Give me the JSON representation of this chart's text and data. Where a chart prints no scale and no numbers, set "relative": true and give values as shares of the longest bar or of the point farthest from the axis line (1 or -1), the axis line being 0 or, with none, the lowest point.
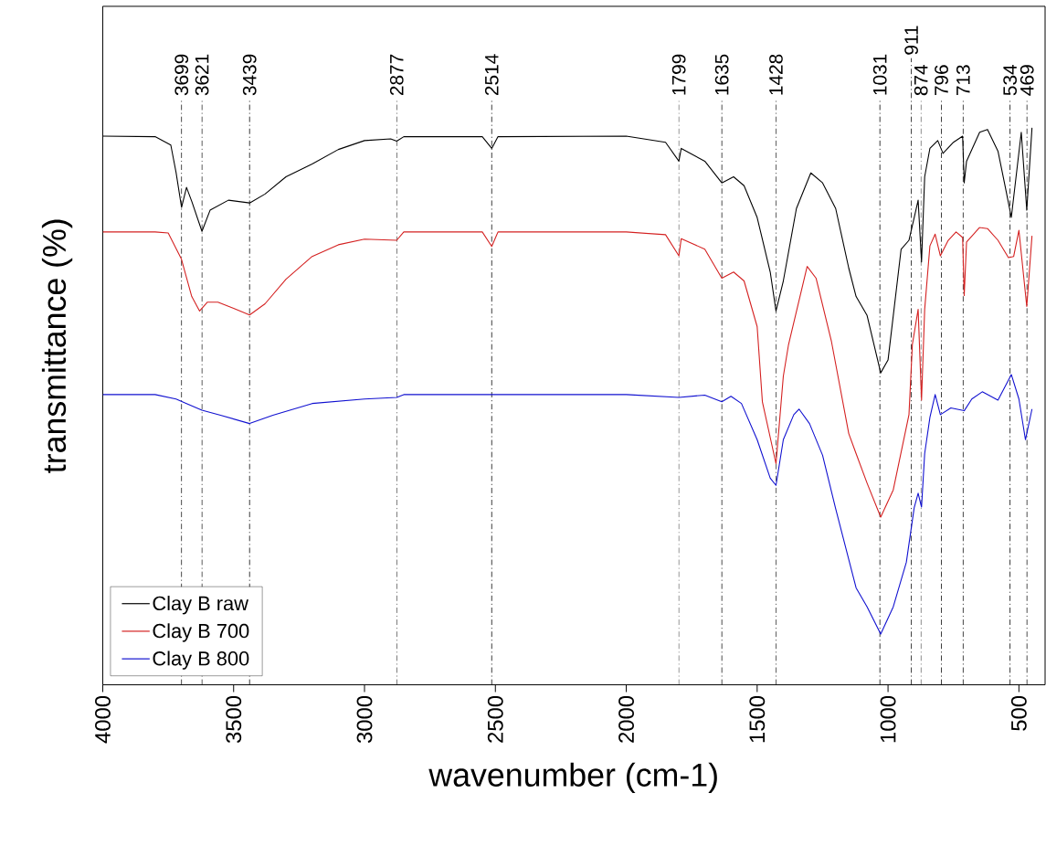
{
  "chart_data": {
    "type": "line",
    "relative": true,
    "xlabel": "wavenumber (cm-1)",
    "ylabel": "transmittance (%)",
    "xlim": [
      4000,
      400
    ],
    "xticks": [
      4000,
      3500,
      3000,
      2500,
      2000,
      1500,
      1000,
      500
    ],
    "legend": "bottom left",
    "series": [
      {
        "name": "Clay B raw",
        "color": "#000000",
        "x": [
          4000,
          3800,
          3740,
          3720,
          3699,
          3680,
          3660,
          3621,
          3590,
          3520,
          3439,
          3380,
          3300,
          3200,
          3100,
          3000,
          2900,
          2877,
          2850,
          2550,
          2514,
          2490,
          2000,
          1850,
          1799,
          1790,
          1700,
          1635,
          1590,
          1550,
          1500,
          1450,
          1428,
          1400,
          1350,
          1295,
          1250,
          1200,
          1150,
          1122,
          1080,
          1028,
          1000,
          950,
          920,
          900,
          885,
          872,
          860,
          840,
          810,
          790,
          750,
          715,
          709,
          700,
          650,
          620,
          580,
          550,
          529,
          491,
          470,
          450
        ],
        "values": [
          0.985,
          0.984,
          0.969,
          0.92,
          0.857,
          0.893,
          0.868,
          0.814,
          0.852,
          0.87,
          0.865,
          0.881,
          0.912,
          0.935,
          0.961,
          0.977,
          0.98,
          0.976,
          0.984,
          0.984,
          0.963,
          0.984,
          0.985,
          0.974,
          0.94,
          0.963,
          0.94,
          0.901,
          0.912,
          0.896,
          0.839,
          0.741,
          0.671,
          0.725,
          0.855,
          0.919,
          0.901,
          0.855,
          0.748,
          0.697,
          0.663,
          0.56,
          0.583,
          0.782,
          0.798,
          0.839,
          0.87,
          0.759,
          0.912,
          0.963,
          0.977,
          0.954,
          0.974,
          0.985,
          0.901,
          0.94,
          0.992,
          0.997,
          0.958,
          0.889,
          0.839,
          0.992,
          0.852,
          1.0
        ]
      },
      {
        "name": "Clay B 700",
        "color": "#d42020",
        "x": [
          4000,
          3800,
          3750,
          3700,
          3660,
          3630,
          3600,
          3560,
          3500,
          3439,
          3380,
          3300,
          3200,
          3100,
          3000,
          2877,
          2850,
          2550,
          2514,
          2490,
          2000,
          1850,
          1799,
          1790,
          1700,
          1635,
          1590,
          1550,
          1500,
          1480,
          1428,
          1400,
          1380,
          1309,
          1275,
          1216,
          1150,
          1122,
          1080,
          1028,
          980,
          920,
          907,
          885,
          872,
          860,
          840,
          820,
          800,
          770,
          740,
          715,
          709,
          700,
          650,
          620,
          580,
          540,
          520,
          500,
          470,
          450
        ],
        "values": [
          0.813,
          0.813,
          0.811,
          0.765,
          0.697,
          0.671,
          0.687,
          0.687,
          0.676,
          0.664,
          0.684,
          0.728,
          0.769,
          0.79,
          0.8,
          0.798,
          0.813,
          0.813,
          0.787,
          0.813,
          0.813,
          0.808,
          0.77,
          0.801,
          0.782,
          0.73,
          0.741,
          0.725,
          0.643,
          0.508,
          0.397,
          0.554,
          0.611,
          0.751,
          0.73,
          0.616,
          0.451,
          0.415,
          0.362,
          0.301,
          0.35,
          0.485,
          0.611,
          0.674,
          0.511,
          0.674,
          0.788,
          0.809,
          0.77,
          0.798,
          0.813,
          0.803,
          0.699,
          0.795,
          0.821,
          0.819,
          0.798,
          0.767,
          0.769,
          0.816,
          0.679,
          0.806
        ]
      },
      {
        "name": "Clay B 800",
        "color": "#1010d0",
        "x": [
          4000,
          3800,
          3720,
          3680,
          3621,
          3550,
          3439,
          3350,
          3200,
          3000,
          2877,
          2850,
          2000,
          1799,
          1700,
          1635,
          1600,
          1560,
          1500,
          1450,
          1428,
          1400,
          1360,
          1340,
          1300,
          1250,
          1200,
          1150,
          1122,
          1080,
          1028,
          980,
          930,
          900,
          885,
          872,
          860,
          840,
          820,
          800,
          760,
          709,
          680,
          640,
          580,
          529,
          500,
          475,
          450
        ],
        "values": [
          0.521,
          0.521,
          0.513,
          0.505,
          0.493,
          0.484,
          0.469,
          0.484,
          0.505,
          0.513,
          0.516,
          0.521,
          0.521,
          0.516,
          0.52,
          0.508,
          0.518,
          0.505,
          0.44,
          0.371,
          0.358,
          0.44,
          0.485,
          0.495,
          0.469,
          0.412,
          0.316,
          0.225,
          0.174,
          0.14,
          0.091,
          0.14,
          0.22,
          0.318,
          0.344,
          0.319,
          0.415,
          0.48,
          0.521,
          0.485,
          0.497,
          0.492,
          0.513,
          0.526,
          0.511,
          0.557,
          0.513,
          0.44,
          0.495
        ]
      }
    ],
    "ref_lines": [
      {
        "axis": "x",
        "value": 3699,
        "label": "3699"
      },
      {
        "axis": "x",
        "value": 3621,
        "label": "3621"
      },
      {
        "axis": "x",
        "value": 3439,
        "label": "3439"
      },
      {
        "axis": "x",
        "value": 2877,
        "label": "2877"
      },
      {
        "axis": "x",
        "value": 2514,
        "label": "2514"
      },
      {
        "axis": "x",
        "value": 1799,
        "label": "1799"
      },
      {
        "axis": "x",
        "value": 1635,
        "label": "1635"
      },
      {
        "axis": "x",
        "value": 1428,
        "label": "1428"
      },
      {
        "axis": "x",
        "value": 1031,
        "label": "1031"
      },
      {
        "axis": "x",
        "value": 911,
        "label": "911"
      },
      {
        "axis": "x",
        "value": 874,
        "label": "874"
      },
      {
        "axis": "x",
        "value": 796,
        "label": "796"
      },
      {
        "axis": "x",
        "value": 713,
        "label": "713"
      },
      {
        "axis": "x",
        "value": 534,
        "label": "534"
      },
      {
        "axis": "x",
        "value": 469,
        "label": "469"
      }
    ]
  }
}
